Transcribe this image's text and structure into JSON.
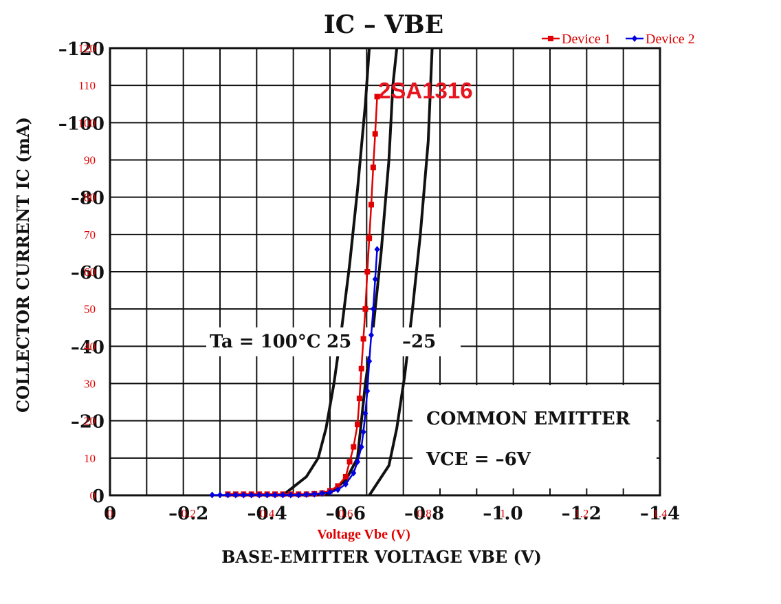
{
  "chart_data": [
    {
      "type": "line",
      "title": "IC – VBE",
      "xlabel": "BASE-EMITTER VOLTAGE   VBE   (V)",
      "ylabel": "COLLECTOR CURRENT   IC   (mA)",
      "xlim": [
        0,
        -1.4
      ],
      "ylim": [
        0,
        -120
      ],
      "x_ticks": [
        "0",
        "–0.2",
        "–0.4",
        "–0.6",
        "–0.8",
        "–1.0",
        "–1.2",
        "–1.4"
      ],
      "y_ticks": [
        "0",
        "–20",
        "–40",
        "–60",
        "–80",
        "–100",
        "–120"
      ],
      "grid": true,
      "annotations": [
        "Ta = 100°C",
        "25",
        "–25",
        "COMMON EMITTER",
        "VCE = –6V"
      ],
      "series": [
        {
          "name": "Ta = 100°C",
          "x": [
            -0.44,
            -0.5,
            -0.53,
            -0.55,
            -0.57,
            -0.59,
            -0.61,
            -0.63,
            -0.65,
            -0.66
          ],
          "y": [
            0,
            -5,
            -10,
            -18,
            -30,
            -45,
            -62,
            -82,
            -105,
            -120
          ]
        },
        {
          "name": "25",
          "x": [
            -0.55,
            -0.6,
            -0.63,
            -0.64,
            -0.65,
            -0.67,
            -0.69,
            -0.71,
            -0.72,
            -0.73
          ],
          "y": [
            0,
            -4,
            -10,
            -20,
            -30,
            -45,
            -65,
            -90,
            -110,
            -120
          ]
        },
        {
          "name": "–25",
          "x": [
            -0.66,
            -0.71,
            -0.73,
            -0.75,
            -0.77,
            -0.79,
            -0.81,
            -0.82
          ],
          "y": [
            0,
            -8,
            -18,
            -32,
            -50,
            -70,
            -95,
            -120
          ]
        }
      ]
    },
    {
      "type": "line",
      "title": "2SA1316",
      "xlabel": "Voltage Vbe (V)",
      "ylabel": "",
      "xlim": [
        0,
        1.4
      ],
      "ylim": [
        0,
        120
      ],
      "x_ticks": [
        "0",
        "0.2",
        "0.4",
        "0.6",
        "0.8",
        "1",
        "1.2",
        "1.4"
      ],
      "y_ticks": [
        "0",
        "10",
        "20",
        "30",
        "40",
        "50",
        "60",
        "70",
        "80",
        "90",
        "100",
        "110",
        "120"
      ],
      "legend": "top-right",
      "colors": {
        "Device 1": "#e00000",
        "Device 2": "#0000e0"
      },
      "series": [
        {
          "name": "Device 1",
          "x": [
            0.3,
            0.32,
            0.34,
            0.36,
            0.38,
            0.4,
            0.42,
            0.44,
            0.46,
            0.48,
            0.5,
            0.52,
            0.54,
            0.56,
            0.58,
            0.6,
            0.61,
            0.62,
            0.63,
            0.635,
            0.64,
            0.645,
            0.65,
            0.655,
            0.66,
            0.665,
            0.67,
            0.675,
            0.68,
            0.685,
            0.69
          ],
          "y": [
            0.3,
            0.3,
            0.3,
            0.3,
            0.3,
            0.3,
            0.3,
            0.3,
            0.3,
            0.3,
            0.3,
            0.4,
            0.6,
            1.2,
            2.5,
            5,
            9,
            13,
            19,
            26,
            34,
            42,
            50,
            60,
            69,
            78,
            88,
            97,
            107,
            0,
            0
          ]
        },
        {
          "name": "Device 2",
          "x": [
            0.26,
            0.28,
            0.3,
            0.32,
            0.34,
            0.36,
            0.38,
            0.4,
            0.42,
            0.44,
            0.46,
            0.48,
            0.5,
            0.52,
            0.54,
            0.56,
            0.58,
            0.6,
            0.62,
            0.63,
            0.64,
            0.645,
            0.65,
            0.655,
            0.66,
            0.665,
            0.67,
            0.675,
            0.68
          ],
          "y": [
            0.1,
            0.1,
            0.1,
            0.1,
            0.1,
            0.1,
            0.1,
            0.1,
            0.1,
            0.1,
            0.1,
            0.1,
            0.2,
            0.3,
            0.5,
            0.8,
            1.5,
            3,
            6,
            9,
            13,
            17,
            22,
            28,
            36,
            43,
            50,
            58,
            66
          ]
        }
      ]
    }
  ]
}
